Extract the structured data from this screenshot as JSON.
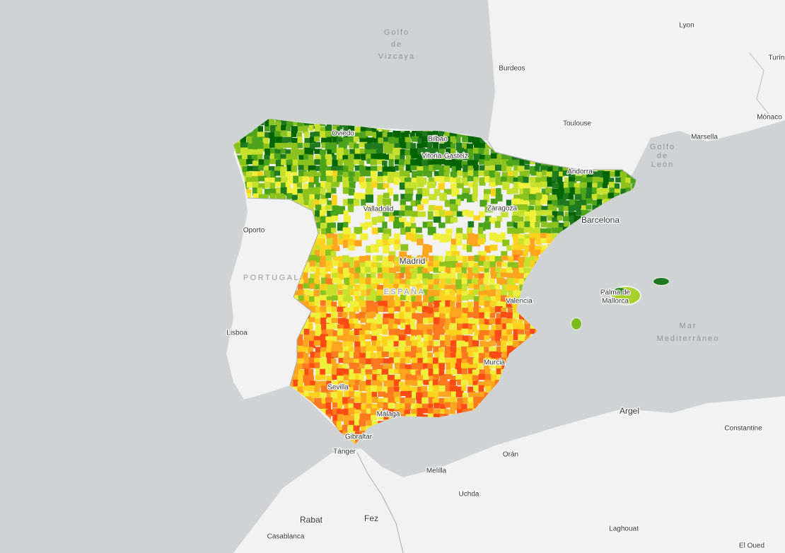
{
  "labels": [
    [
      "Golfo",
      "de",
      "Vizcaya"
    ],
    [
      "Lyon"
    ],
    [
      "Burdeos"
    ],
    [
      "Turín"
    ],
    [
      "Mónaco"
    ],
    [
      "Toulouse"
    ],
    [
      "Marsella"
    ],
    [
      "Golfo",
      "de",
      "León"
    ],
    [
      "Oviedo"
    ],
    [
      "Bilbao"
    ],
    [
      "Vitoria-Gasteiz"
    ],
    [
      "Andorra"
    ],
    [
      "Valladolid"
    ],
    [
      "Zaragoza"
    ],
    [
      "Barcelona"
    ],
    [
      "Oporto"
    ],
    [
      "PORTUGAL"
    ],
    [
      "Madrid"
    ],
    [
      "ESPAÑA"
    ],
    [
      "Palma de",
      "Mallorca"
    ],
    [
      "Valencia"
    ],
    [
      "Lisboa"
    ],
    [
      "Mar",
      "Mediterráneo"
    ],
    [
      "Murcia"
    ],
    [
      "Sevilla"
    ],
    [
      "Málaga"
    ],
    [
      "Gibraltar"
    ],
    [
      "Tánger"
    ],
    [
      "Argel"
    ],
    [
      "Constantine"
    ],
    [
      "Orán"
    ],
    [
      "Melilla"
    ],
    [
      "Uchda"
    ],
    [
      "Rabat"
    ],
    [
      "Fez"
    ],
    [
      "Casablanca"
    ],
    [
      "Laghouat"
    ],
    [
      "El Oued"
    ]
  ]
}
